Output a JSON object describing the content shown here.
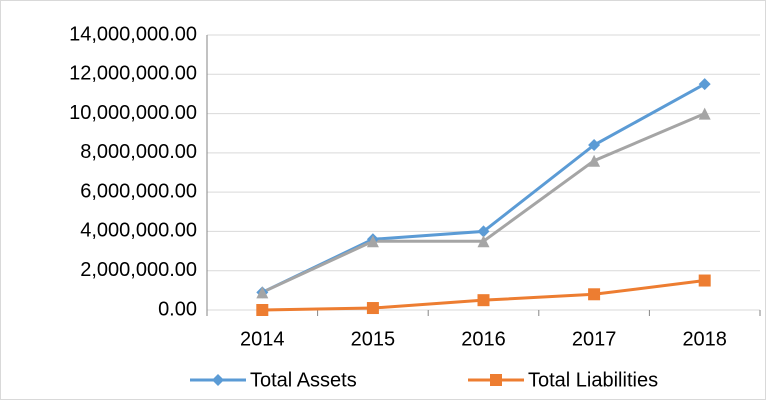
{
  "chart_data": {
    "type": "line",
    "categories": [
      "2014",
      "2015",
      "2016",
      "2017",
      "2018"
    ],
    "series": [
      {
        "name": "Total Assets",
        "color": "#5b9bd5",
        "marker": "diamond",
        "values": [
          900000,
          3600000,
          4000000,
          8400000,
          11500000
        ]
      },
      {
        "color": "#a5a5a5",
        "marker": "triangle",
        "values": [
          900000,
          3500000,
          3500000,
          7600000,
          10000000
        ]
      },
      {
        "name": "Total Liabilities",
        "color": "#ed7d31",
        "marker": "square",
        "values": [
          0,
          100000,
          500000,
          800000,
          1500000
        ]
      }
    ],
    "ylim": [
      0,
      14000000
    ],
    "yticks": [
      {
        "value": 0,
        "label": "0.00"
      },
      {
        "value": 2000000,
        "label": "2,000,000.00"
      },
      {
        "value": 4000000,
        "label": "4,000,000.00"
      },
      {
        "value": 6000000,
        "label": "6,000,000.00"
      },
      {
        "value": 8000000,
        "label": "8,000,000.00"
      },
      {
        "value": 10000000,
        "label": "10,000,000.00"
      },
      {
        "value": 12000000,
        "label": "12,000,000.00"
      },
      {
        "value": 14000000,
        "label": "14,000,000.00"
      }
    ],
    "grid": true,
    "legend": "bottom"
  }
}
